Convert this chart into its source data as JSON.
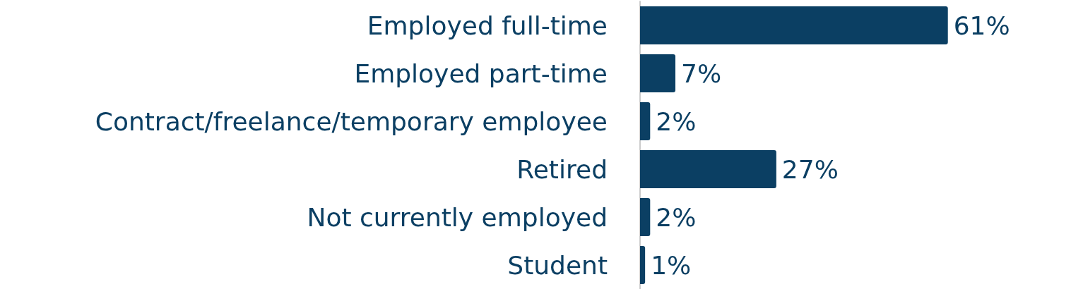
{
  "chart_data": {
    "type": "bar",
    "orientation": "horizontal",
    "categories": [
      "Employed full-time",
      "Employed part-time",
      "Contract/freelance/temporary employee",
      "Retired",
      "Not currently employed",
      "Student"
    ],
    "values": [
      61,
      7,
      2,
      27,
      2,
      1
    ],
    "color": "#0b3f63",
    "value_labels": [
      "61%",
      "7%",
      "2%",
      "27%",
      "2%",
      "1%"
    ]
  }
}
